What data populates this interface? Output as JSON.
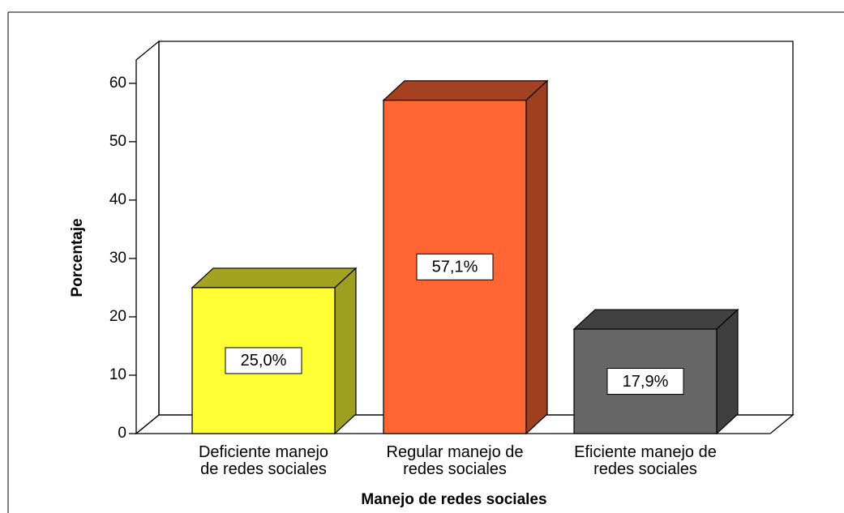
{
  "chart_data": {
    "type": "bar3d",
    "categories": [
      "Deficiente manejo\nde redes sociales",
      "Regular manejo de\nredes sociales",
      "Eficiente manejo de\nredes sociales"
    ],
    "values": [
      25.0,
      57.1,
      17.9
    ],
    "value_labels": [
      "25,0%",
      "57,1%",
      "17,9%"
    ],
    "colors": [
      "#ffff33",
      "#ff6633",
      "#666666"
    ],
    "xlabel": "Manejo de redes sociales",
    "ylabel": "Porcentaje",
    "ylim": [
      0,
      64
    ],
    "yticks": [
      0,
      10,
      20,
      30,
      40,
      50,
      60
    ]
  }
}
